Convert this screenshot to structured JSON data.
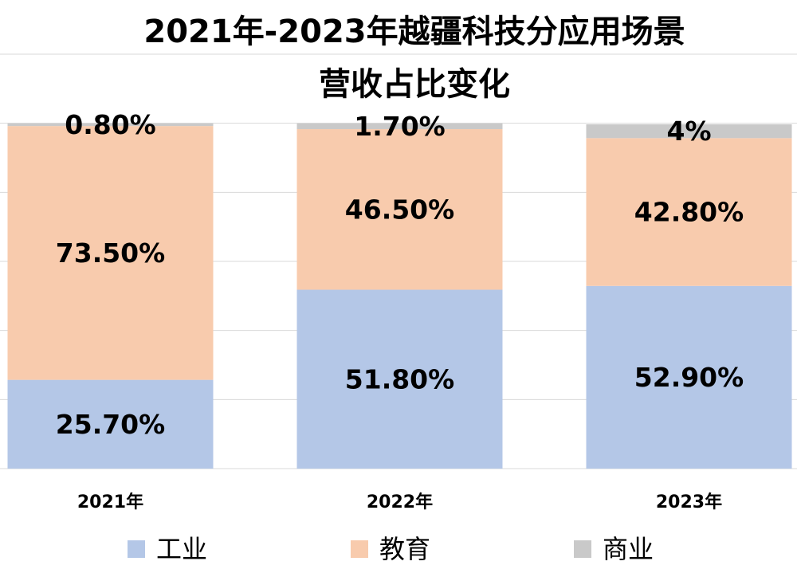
{
  "chart_data": {
    "type": "stacked_bar",
    "title": [
      "2021年-2023年越疆科技分应用场景",
      "营收占比变化"
    ],
    "categories": [
      "2021年",
      "2022年",
      "2023年"
    ],
    "series": [
      {
        "name": "工业",
        "color": "#b4c7e7",
        "values": [
          25.7,
          51.8,
          52.9
        ],
        "value_labels": [
          "25.70%",
          "51.80%",
          "52.90%"
        ]
      },
      {
        "name": "教育",
        "color": "#f8cbad",
        "values": [
          73.5,
          46.5,
          42.8
        ],
        "value_labels": [
          "73.50%",
          "46.50%",
          "42.80%"
        ]
      },
      {
        "name": "商业",
        "color": "#c9c9c9",
        "values": [
          0.8,
          1.7,
          4
        ],
        "value_labels": [
          "0.80%",
          "1.70%",
          "4%"
        ]
      }
    ],
    "ylim": [
      0,
      120
    ],
    "yticks": [
      0,
      20,
      40,
      60,
      80,
      100,
      120
    ],
    "tick_labels": false,
    "grid": true,
    "legend": "bottom"
  }
}
